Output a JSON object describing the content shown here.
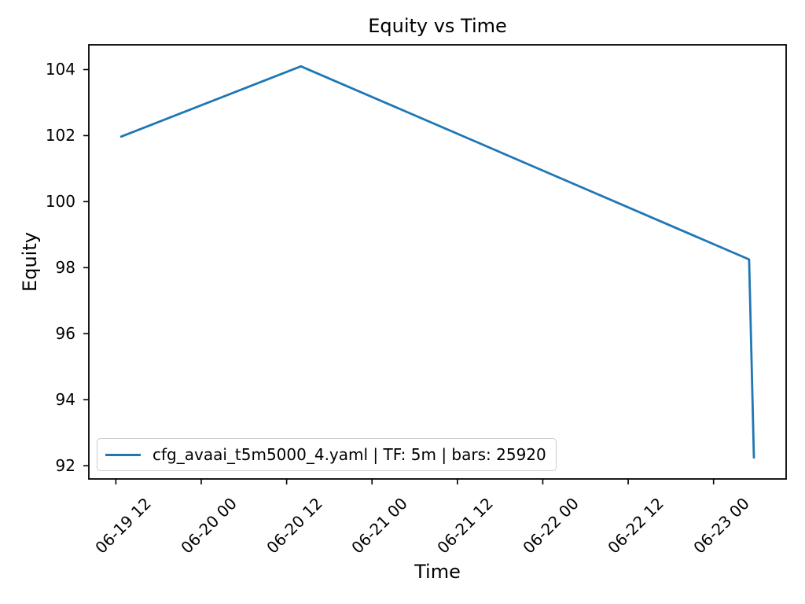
{
  "figure": {
    "title": "Equity vs Time",
    "xlabel": "Time",
    "ylabel": "Equity",
    "background_color": "#ffffff",
    "spine_color": "#000000",
    "text_color": "#000000"
  },
  "legend": {
    "label": "cfg_avaai_t5m5000_4.yaml | TF: 5m | bars: 25920",
    "line_color": "#1f77b4"
  },
  "chart_data": {
    "type": "line",
    "title": "Equity vs Time",
    "xlabel": "Time",
    "ylabel": "Equity",
    "grid": false,
    "legend_position": "lower left",
    "x_unit": "hours since 06-19 00:00",
    "xlim": [
      8.2,
      106.2
    ],
    "ylim": [
      91.6,
      104.75
    ],
    "x_ticks": [
      {
        "t": 12,
        "label": "06-19 12"
      },
      {
        "t": 24,
        "label": "06-20 00"
      },
      {
        "t": 36,
        "label": "06-20 12"
      },
      {
        "t": 48,
        "label": "06-21 00"
      },
      {
        "t": 60,
        "label": "06-21 12"
      },
      {
        "t": 72,
        "label": "06-22 00"
      },
      {
        "t": 84,
        "label": "06-22 12"
      },
      {
        "t": 96,
        "label": "06-23 00"
      }
    ],
    "y_ticks": [
      92,
      94,
      96,
      98,
      100,
      102,
      104
    ],
    "series": [
      {
        "name": "cfg_avaai_t5m5000_4.yaml | TF: 5m | bars: 25920",
        "color": "#1f77b4",
        "points": [
          {
            "t": 12.75,
            "time": "06-19 12:45",
            "equity": 101.97
          },
          {
            "t": 38.0,
            "time": "06-20 14:00",
            "equity": 104.1
          },
          {
            "t": 101.0,
            "time": "06-23 05:00",
            "equity": 98.25
          },
          {
            "t": 101.67,
            "time": "06-23 05:40",
            "equity": 92.25
          }
        ]
      }
    ]
  }
}
